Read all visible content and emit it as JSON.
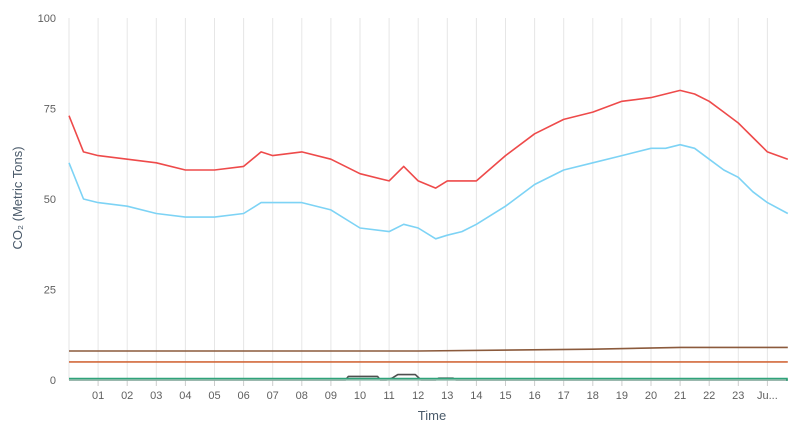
{
  "chart_data": {
    "type": "line",
    "title": "",
    "xlabel": "Time",
    "ylabel": "CO₂ (Metric Tons)",
    "ylim": [
      0,
      100
    ],
    "y_ticks": [
      0,
      25,
      50,
      75,
      100
    ],
    "x_tick_labels": [
      "01",
      "02",
      "03",
      "04",
      "05",
      "06",
      "07",
      "08",
      "09",
      "10",
      "11",
      "12",
      "13",
      "14",
      "15",
      "16",
      "17",
      "18",
      "19",
      "20",
      "21",
      "22",
      "23",
      "Ju..."
    ],
    "grid": "vertical",
    "legend": "none",
    "series": [
      {
        "color": "#ee4a4a",
        "x": [
          0,
          0.5,
          1,
          2,
          3,
          4,
          5,
          6,
          6.6,
          7,
          8,
          9,
          10,
          11,
          11.5,
          12,
          12.6,
          13,
          13.5,
          14,
          15,
          16,
          17,
          18,
          19,
          20,
          20.5,
          21,
          21.5,
          22,
          22.5,
          23,
          23.5,
          24,
          24.7
        ],
        "values": [
          73,
          63,
          62,
          61,
          60,
          58,
          58,
          59,
          63,
          62,
          63,
          61,
          57,
          55,
          59,
          55,
          53,
          55,
          55,
          55,
          62,
          68,
          72,
          74,
          77,
          78,
          79,
          80,
          79,
          77,
          74,
          71,
          67,
          63,
          61
        ]
      },
      {
        "color": "#7dd3f5",
        "x": [
          0,
          0.5,
          1,
          2,
          3,
          4,
          5,
          6,
          6.6,
          7,
          8,
          9,
          10,
          11,
          11.5,
          12,
          12.6,
          13,
          13.5,
          14,
          15,
          16,
          17,
          18,
          19,
          20,
          20.5,
          21,
          21.5,
          22,
          22.5,
          23,
          23.5,
          24,
          24.7
        ],
        "values": [
          60,
          50,
          49,
          48,
          46,
          45,
          45,
          46,
          49,
          49,
          49,
          47,
          42,
          41,
          43,
          42,
          39,
          40,
          41,
          43,
          48,
          54,
          58,
          60,
          62,
          64,
          64,
          65,
          64,
          61,
          58,
          56,
          52,
          49,
          46
        ]
      },
      {
        "color": "#8b5a3c",
        "x": [
          0,
          6,
          12,
          18,
          21,
          24.7
        ],
        "values": [
          8,
          8,
          8,
          8.5,
          9,
          9
        ]
      },
      {
        "color": "#d2693c",
        "x": [
          0,
          6,
          12,
          18,
          24.7
        ],
        "values": [
          5,
          5,
          5,
          5,
          5
        ]
      },
      {
        "color": "#4f4f4f",
        "x": [
          0,
          9.5,
          9.6,
          10.6,
          10.7,
          10.9,
          11.1,
          11.3,
          11.9,
          12.1,
          12.6,
          12.7,
          13.2,
          13.3,
          24.7
        ],
        "values": [
          0,
          0,
          1,
          1,
          0,
          0,
          0.5,
          1.5,
          1.5,
          0,
          0,
          0.5,
          0.5,
          0,
          0
        ]
      },
      {
        "color": "#2fa37a",
        "x": [
          0,
          24.7
        ],
        "values": [
          0.2,
          0.2
        ]
      }
    ]
  }
}
